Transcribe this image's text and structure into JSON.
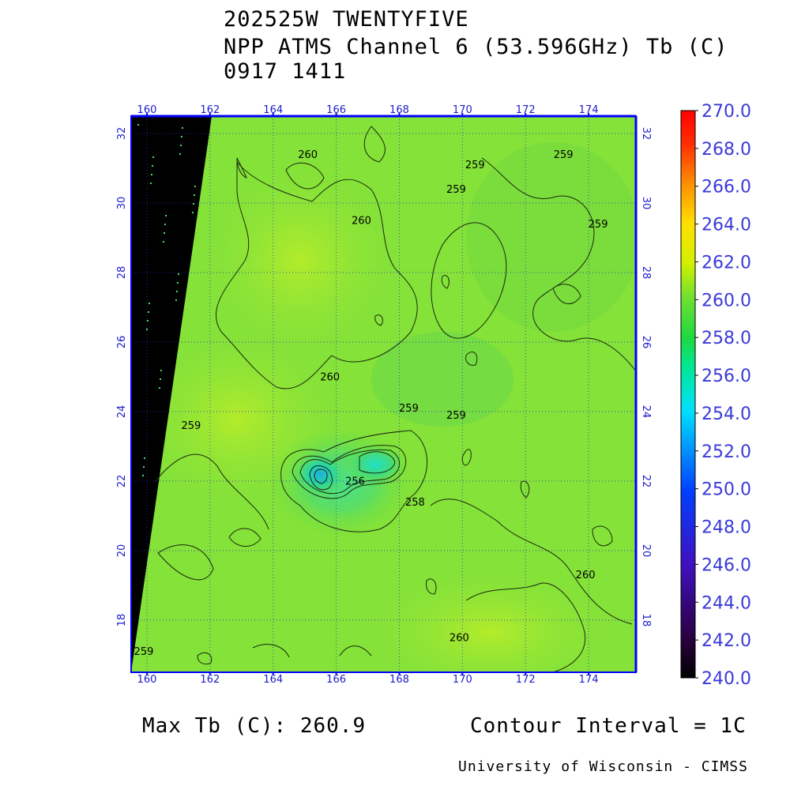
{
  "title": {
    "line1": "202525W TWENTYFIVE",
    "line2": "NPP ATMS Channel 6 (53.596GHz) Tb (C)",
    "line3": "0917 1411"
  },
  "map": {
    "lon_ticks": [
      "160",
      "162",
      "164",
      "166",
      "168",
      "170",
      "172",
      "174"
    ],
    "lat_ticks": [
      "18",
      "20",
      "22",
      "24",
      "26",
      "28",
      "30",
      "32"
    ],
    "lon_range": [
      159.5,
      175.5
    ],
    "lat_range": [
      16.5,
      32.5
    ],
    "grid": "dotted",
    "contour_labels": [
      {
        "text": "260",
        "lon": 165.1,
        "lat": 31.3
      },
      {
        "text": "259",
        "lon": 169.8,
        "lat": 30.3
      },
      {
        "text": "259",
        "lon": 170.4,
        "lat": 31.0
      },
      {
        "text": "259",
        "lon": 173.2,
        "lat": 31.3
      },
      {
        "text": "260",
        "lon": 166.8,
        "lat": 29.4
      },
      {
        "text": "259",
        "lon": 174.3,
        "lat": 29.3
      },
      {
        "text": "260",
        "lon": 165.8,
        "lat": 24.9
      },
      {
        "text": "259",
        "lon": 168.3,
        "lat": 24.0
      },
      {
        "text": "259",
        "lon": 169.8,
        "lat": 23.8
      },
      {
        "text": "259",
        "lon": 161.4,
        "lat": 23.5
      },
      {
        "text": "256",
        "lon": 166.6,
        "lat": 21.9
      },
      {
        "text": "258",
        "lon": 168.5,
        "lat": 21.3
      },
      {
        "text": "260",
        "lon": 173.9,
        "lat": 19.2
      },
      {
        "text": "260",
        "lon": 169.9,
        "lat": 17.4
      },
      {
        "text": "259",
        "lon": 159.9,
        "lat": 17.0
      }
    ]
  },
  "colorbar": {
    "labels": [
      "270.0",
      "268.0",
      "266.0",
      "264.0",
      "262.0",
      "260.0",
      "258.0",
      "256.0",
      "254.0",
      "252.0",
      "250.0",
      "248.0",
      "246.0",
      "244.0",
      "242.0",
      "240.0"
    ],
    "min": 240.0,
    "max": 270.0
  },
  "footer": {
    "max_tb": "Max Tb (C): 260.9",
    "contour_interval": "Contour Interval = 1C",
    "credit": "University of Wisconsin - CIMSS"
  }
}
